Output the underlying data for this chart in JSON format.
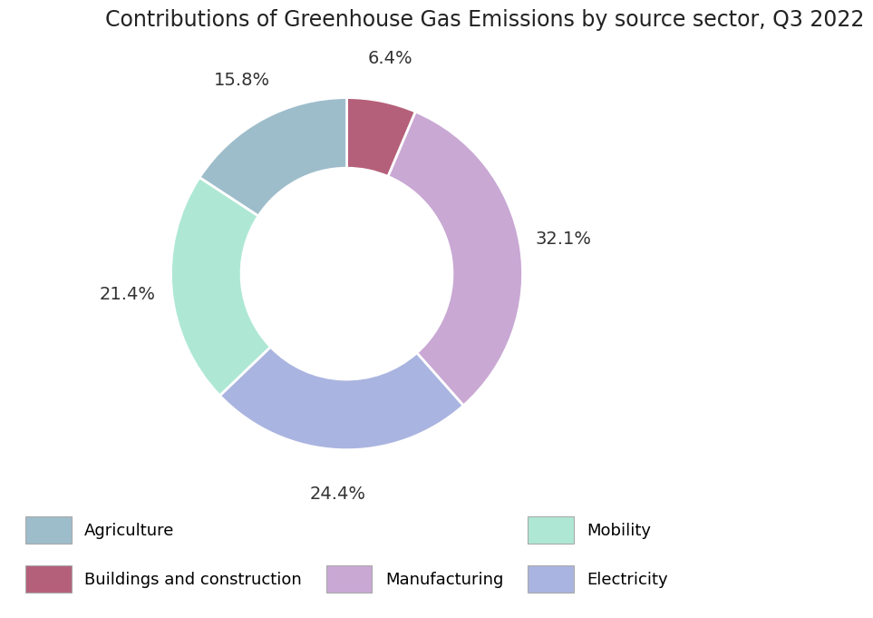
{
  "title": "Contributions of Greenhouse Gas Emissions by source sector, Q3 2022",
  "segments": [
    {
      "label": "Buildings and construction",
      "value": 6.4,
      "color": "#b5607a"
    },
    {
      "label": "Manufacturing",
      "value": 32.1,
      "color": "#c9a8d4"
    },
    {
      "label": "Electricity",
      "value": 24.4,
      "color": "#aab4e0"
    },
    {
      "label": "Mobility",
      "value": 21.4,
      "color": "#aee8d5"
    },
    {
      "label": "Agriculture",
      "value": 15.8,
      "color": "#9ebdcb"
    }
  ],
  "legend_colors": {
    "Agriculture": "#9ebdcb",
    "Buildings and construction": "#b5607a",
    "Manufacturing": "#c9a8d4",
    "Mobility": "#aee8d5",
    "Electricity": "#aab4e0"
  },
  "background_color": "#ffffff",
  "title_fontsize": 17,
  "label_fontsize": 14,
  "legend_fontsize": 13,
  "donut_width": 0.4
}
